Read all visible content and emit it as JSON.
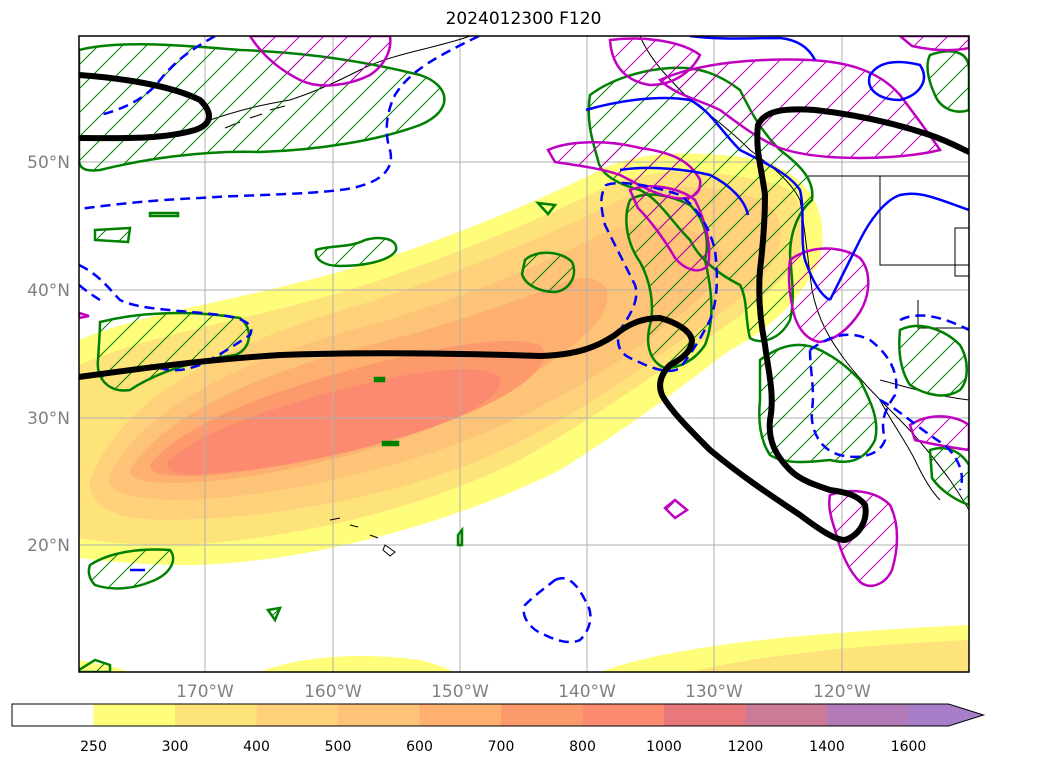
{
  "title": "2024012300 F120",
  "lat_labels": [
    "50°N",
    "40°N",
    "30°N",
    "20°N"
  ],
  "lon_labels": [
    "170°W",
    "160°W",
    "150°W",
    "140°W",
    "130°W",
    "120°W"
  ],
  "colorbar": {
    "ticks": [
      "250",
      "300",
      "400",
      "500",
      "600",
      "700",
      "800",
      "1000",
      "1200",
      "1400",
      "1600"
    ],
    "colors": [
      "#ffffff",
      "#fefe7a",
      "#fee27a",
      "#fed17a",
      "#fdc478",
      "#fdb070",
      "#fd9a6c",
      "#fc8a70",
      "#e8787c",
      "#cc7a98",
      "#b27ab8",
      "#a87ec8"
    ],
    "extend": "max"
  },
  "legend_colors": {
    "jet_contour": "#000000",
    "green_hatch": "#008000",
    "magenta_hatch": "#c000c0",
    "blue_contour": "#0000ff"
  }
}
